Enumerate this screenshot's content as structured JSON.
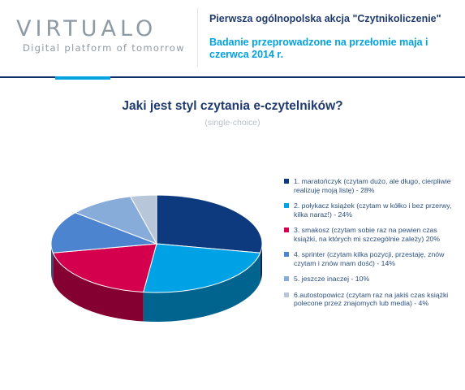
{
  "header": {
    "logo": "VIRTUALO",
    "tagline": "Digital platform of tomorrow",
    "campaign": "Pierwsza ogólnopolska akcja \"Czytnikoliczenie\"",
    "study": "Badanie przeprowadzone na przełomie maja i czerwca 2014 r."
  },
  "chart_data": {
    "type": "pie",
    "title": "Jaki jest styl czytania e-czytelników?",
    "subtitle": "(single-choice)",
    "legend_position": "right",
    "slices": [
      {
        "label": "1. maratończyk (czytam dużo, ale długo, cierpliwie realizuję moją listę) - 28%",
        "value": 28,
        "color": "#0d3a7e"
      },
      {
        "label": "2. połykacz książek (czytam w kółko i bez przerwy, kilka naraz!) - 24%",
        "value": 24,
        "color": "#00a2e6"
      },
      {
        "label": "3. smakosz (czytam sobie raz na pewien czas książki, na których mi szczególnie zależy) 20%",
        "value": 20,
        "color": "#d4004e"
      },
      {
        "label": "4. sprinter (czytam kilka pozycji, przestaję, znów czytam i znów mam dość) - 14%",
        "value": 14,
        "color": "#4d84cf"
      },
      {
        "label": "5. jeszcze inaczej - 10%",
        "value": 10,
        "color": "#87acd9"
      },
      {
        "label": "6.autostopowicz (czytam raz na jakiś czas książki polecone przez znajomych lub media) - 4%",
        "value": 4,
        "color": "#b7c6d8"
      }
    ]
  }
}
